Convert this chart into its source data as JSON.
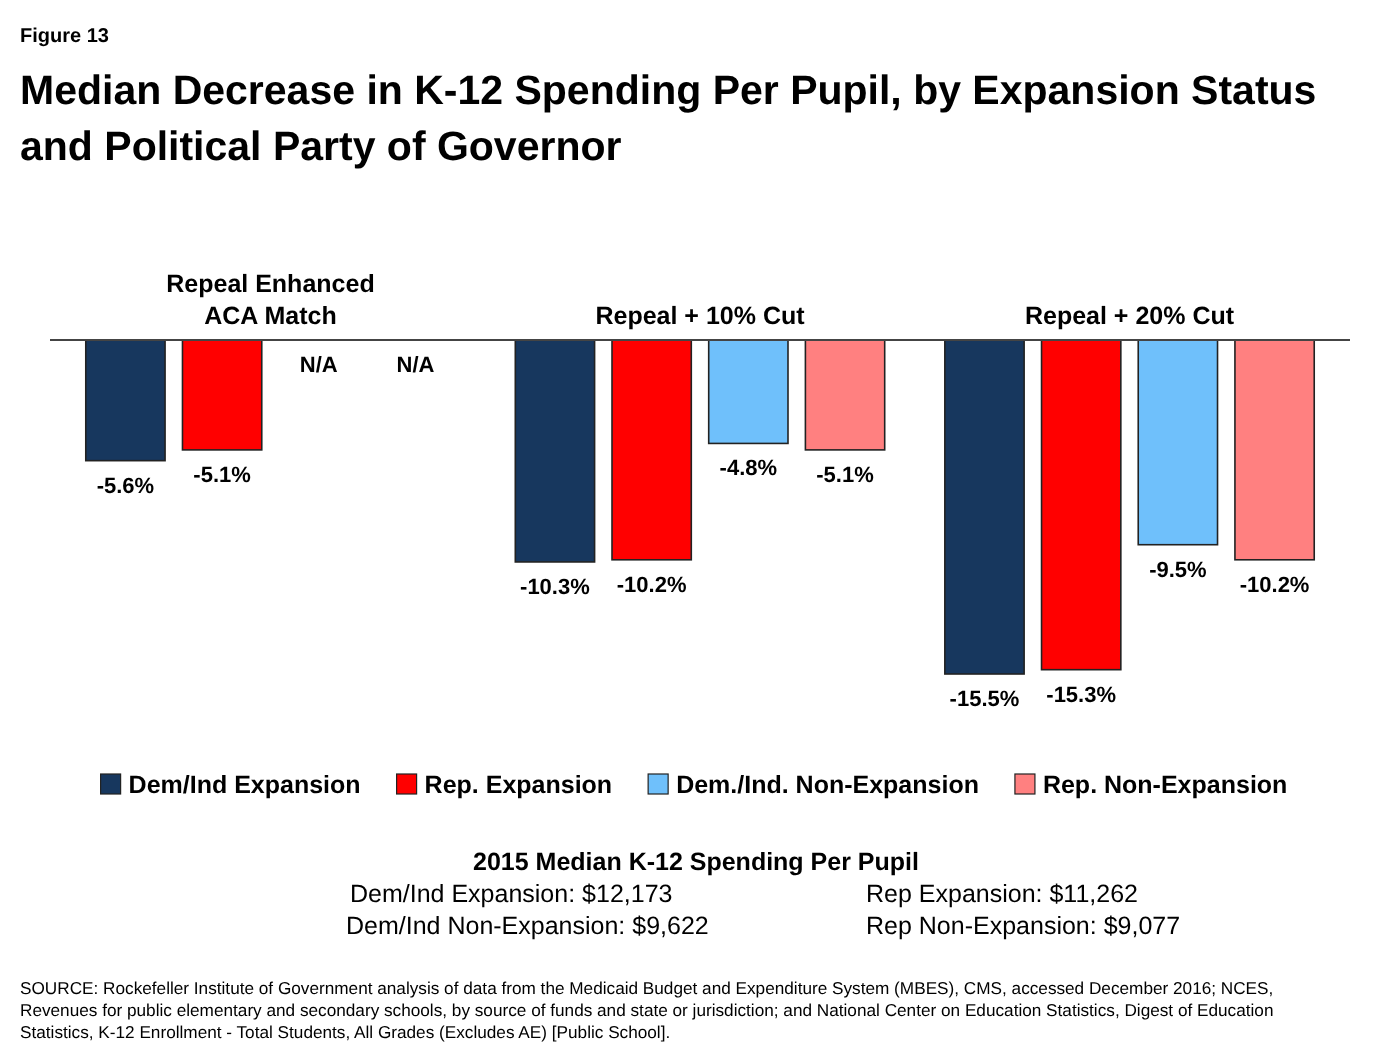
{
  "chart_data": {
    "type": "bar",
    "subtitle": "Figure 13",
    "title": "Median Decrease in K-12 Spending Per Pupil, by Expansion Status and Political Party of Governor",
    "categories": [
      "Repeal Enhanced ACA Match",
      "Repeal + 10% Cut",
      "Repeal + 20% Cut"
    ],
    "series": [
      {
        "name": "Dem/Ind Expansion",
        "color": "#17375e",
        "values": [
          -5.6,
          -10.3,
          -15.5
        ],
        "value_labels": [
          "-5.6%",
          "-10.3%",
          "-15.5%"
        ]
      },
      {
        "name": "Rep. Expansion",
        "color": "#ff0000",
        "values": [
          -5.1,
          -10.2,
          -15.3
        ],
        "value_labels": [
          "-5.1%",
          "-10.2%",
          "-15.3%"
        ]
      },
      {
        "name": "Dem./Ind. Non-Expansion",
        "color": "#6fc0fb",
        "values": [
          null,
          -4.8,
          -9.5
        ],
        "value_labels": [
          "N/A",
          "-4.8%",
          "-9.5%"
        ]
      },
      {
        "name": "Rep. Non-Expansion",
        "color": "#ff8080",
        "values": [
          null,
          -5.1,
          -10.2
        ],
        "value_labels": [
          "N/A",
          "-5.1%",
          "-10.2%"
        ]
      }
    ],
    "legend": "bottom",
    "annotations": [
      "2015 Median K-12 Spending Per Pupil",
      "Dem/Ind Expansion: $12,173",
      "Rep Expansion: $11,262",
      "Dem/Ind Non-Expansion: $9,622",
      "Rep Non-Expansion: $9,077",
      "SOURCE: Rockefeller Institute of Government analysis of data from the Medicaid Budget and Expenditure System (MBES), CMS, accessed December 2016; NCES, Revenues for public elementary and secondary schools, by source of funds and state or jurisdiction; and National Center on Education Statistics, Digest of Education Statistics, K-12 Enrollment - Total Students, All Grades (Excludes AE) [Public School]."
    ]
  }
}
